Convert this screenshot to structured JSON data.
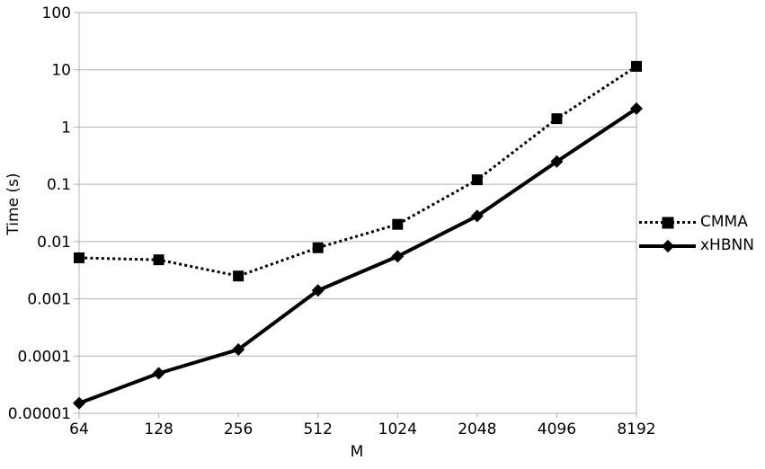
{
  "chart_data": {
    "type": "line",
    "title": "",
    "xlabel": "M",
    "ylabel": "Time (s)",
    "x_categories": [
      "64",
      "128",
      "256",
      "512",
      "1024",
      "2048",
      "4096",
      "8192"
    ],
    "y_scale": "log",
    "ylim": [
      1e-05,
      100
    ],
    "y_tick_labels": [
      "100",
      "10",
      "1",
      "0.1",
      "0.01",
      "0.001",
      "0.0001",
      "0.00001"
    ],
    "grid": "horizontal-on",
    "legend_position": "right",
    "series": [
      {
        "name": "CMMA",
        "line_style": "dotted",
        "marker": "square",
        "color": "#000000",
        "values": [
          0.0052,
          0.0048,
          0.0025,
          0.0078,
          0.02,
          0.12,
          1.4,
          11.5
        ]
      },
      {
        "name": "xHBNN",
        "line_style": "solid",
        "marker": "diamond",
        "color": "#000000",
        "values": [
          1.5e-05,
          5e-05,
          0.00013,
          0.0014,
          0.0055,
          0.028,
          0.25,
          2.1
        ]
      }
    ],
    "colors": {
      "background": "#ffffff",
      "grid": "#b0b0b0",
      "axis": "#b0b0b0",
      "text": "#000000",
      "series": "#000000"
    }
  }
}
